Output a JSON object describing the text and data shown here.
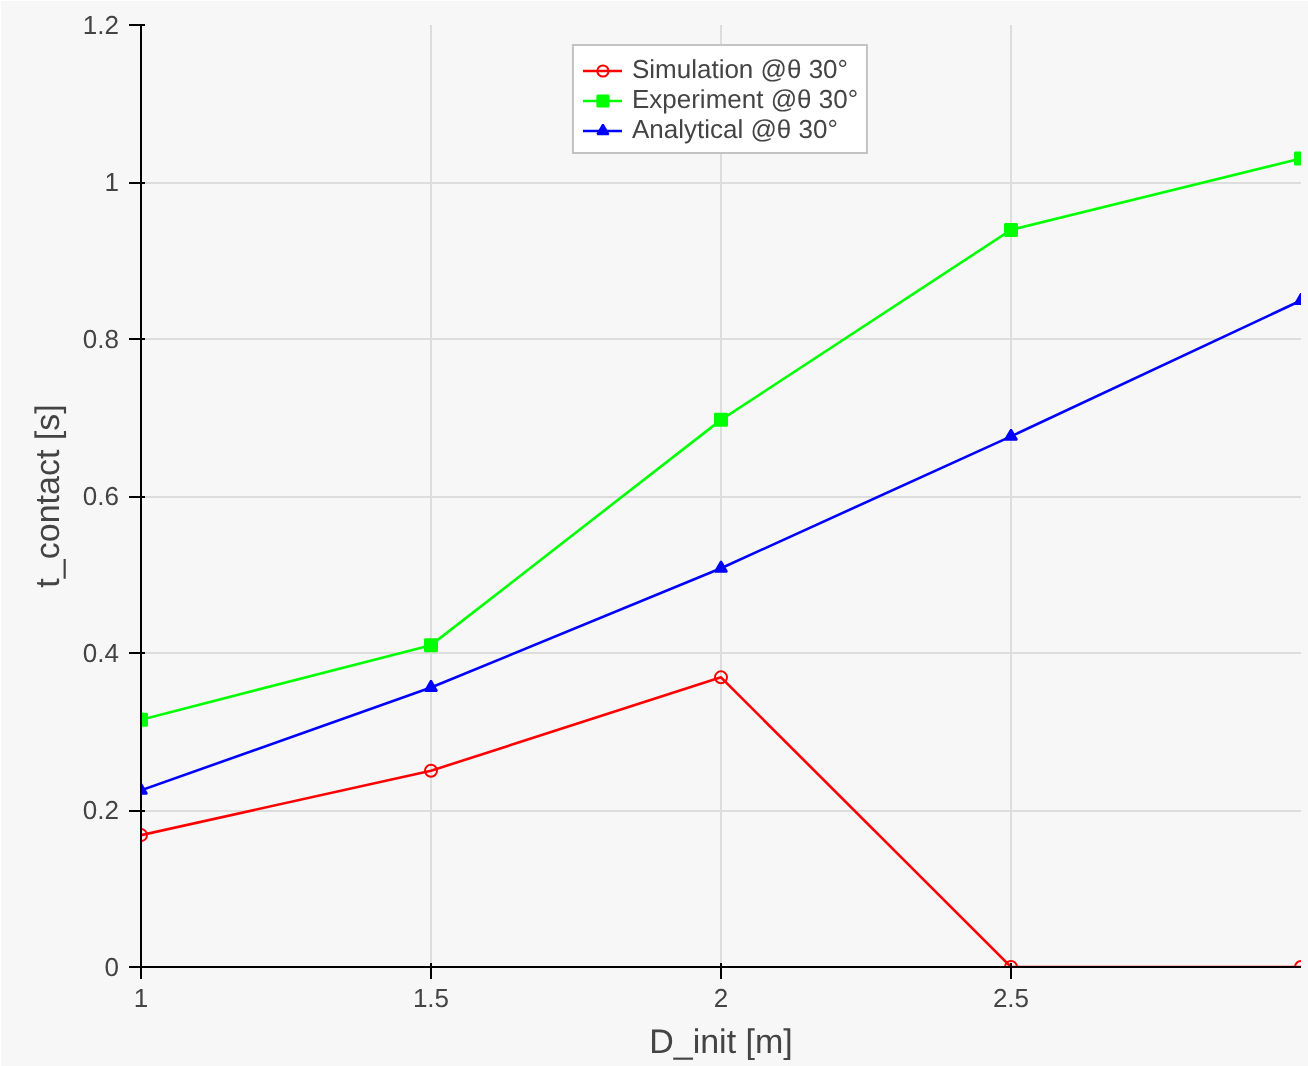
{
  "chart_data": {
    "type": "line",
    "xlabel": "D_init [m]",
    "ylabel": "t_contact [s]",
    "x": [
      1,
      1.5,
      2,
      2.5,
      3
    ],
    "xlim": [
      1,
      3
    ],
    "xticks": [
      1,
      1.5,
      2,
      2.5
    ],
    "ylim": [
      0,
      1.2
    ],
    "yticks": [
      0,
      0.2,
      0.4,
      0.6,
      0.8,
      1,
      1.2
    ],
    "series": [
      {
        "name": "Simulation @θ 30°",
        "color": "#ff0000",
        "marker": "circle",
        "values": [
          0.168,
          0.25,
          0.369,
          0,
          0
        ]
      },
      {
        "name": "Experiment @θ 30°",
        "color": "#00ff00",
        "marker": "square",
        "values": [
          0.315,
          0.41,
          0.697,
          0.939,
          1.03
        ]
      },
      {
        "name": "Analytical @θ 30°",
        "color": "#0000ff",
        "marker": "triangle",
        "values": [
          0.225,
          0.356,
          0.508,
          0.676,
          0.849
        ]
      }
    ],
    "grid": true,
    "legend": "top",
    "line_style": "solid"
  }
}
